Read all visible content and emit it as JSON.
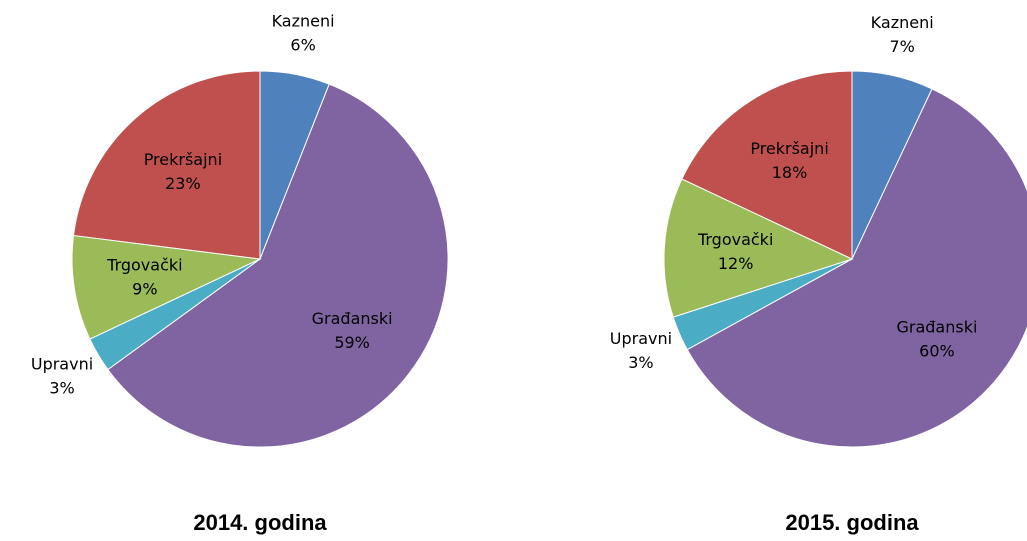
{
  "chart_data": [
    {
      "type": "pie",
      "title": "2014. godina",
      "categories": [
        "Kazneni",
        "Građanski",
        "Upravni",
        "Trgovački",
        "Prekršajni"
      ],
      "values": [
        6,
        59,
        3,
        9,
        23
      ],
      "value_labels": [
        "6%",
        "59%",
        "3%",
        "9%",
        "23%"
      ],
      "colors": [
        "#4f81bd",
        "#8064a2",
        "#4bacc6",
        "#9bbb59",
        "#c0504d"
      ]
    },
    {
      "type": "pie",
      "title": "2015. godina",
      "categories": [
        "Kazneni",
        "Građanski",
        "Upravni",
        "Trgovački",
        "Prekršajni"
      ],
      "values": [
        7,
        60,
        3,
        12,
        18
      ],
      "value_labels": [
        "7%",
        "60%",
        "3%",
        "12%",
        "18%"
      ],
      "colors": [
        "#4f81bd",
        "#8064a2",
        "#4bacc6",
        "#9bbb59",
        "#c0504d"
      ]
    }
  ]
}
